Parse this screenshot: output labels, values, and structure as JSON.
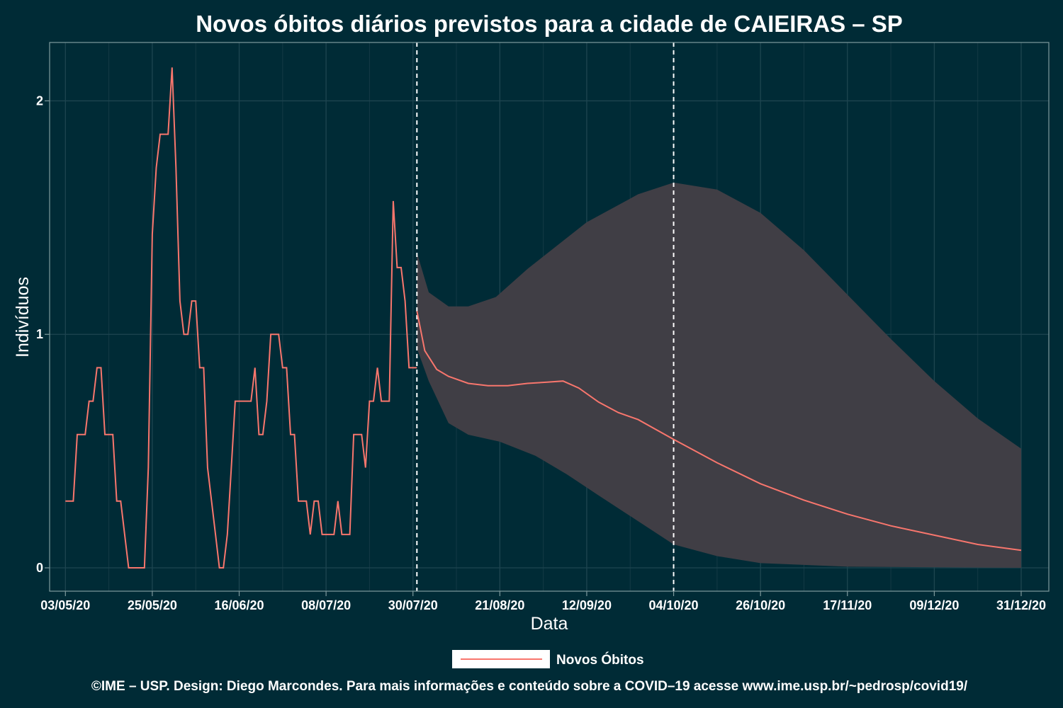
{
  "chart_data": {
    "type": "line",
    "title": "Novos óbitos diários previstos para a cidade de CAIEIRAS – SP",
    "xlabel": "Data",
    "ylabel": "Indivíduos",
    "x_start": "2020-05-03",
    "x_ticks": [
      {
        "date": "2020-05-03",
        "label": "03/05/20"
      },
      {
        "date": "2020-05-25",
        "label": "25/05/20"
      },
      {
        "date": "2020-06-16",
        "label": "16/06/20"
      },
      {
        "date": "2020-07-08",
        "label": "08/07/20"
      },
      {
        "date": "2020-07-30",
        "label": "30/07/20"
      },
      {
        "date": "2020-08-21",
        "label": "21/08/20"
      },
      {
        "date": "2020-09-12",
        "label": "12/09/20"
      },
      {
        "date": "2020-10-04",
        "label": "04/10/20"
      },
      {
        "date": "2020-10-26",
        "label": "26/10/20"
      },
      {
        "date": "2020-11-17",
        "label": "17/11/20"
      },
      {
        "date": "2020-12-09",
        "label": "09/12/20"
      },
      {
        "date": "2020-12-31",
        "label": "31/12/20"
      }
    ],
    "y_ticks": [
      {
        "value": 0,
        "label": "0"
      },
      {
        "value": 1,
        "label": "1"
      },
      {
        "value": 2,
        "label": "2"
      }
    ],
    "ylim": [
      -0.1,
      2.25
    ],
    "xlim": [
      "2020-04-29",
      "2021-01-07"
    ],
    "grid": true,
    "vlines": [
      "2020-07-31",
      "2020-10-04"
    ],
    "legend_position": "bottom",
    "series": [
      {
        "name": "Novos Óbitos",
        "color": "#f8766d",
        "observed": [
          [
            "2020-05-03",
            0.286
          ],
          [
            "2020-05-04",
            0.286
          ],
          [
            "2020-05-05",
            0.286
          ],
          [
            "2020-05-06",
            0.571
          ],
          [
            "2020-05-07",
            0.571
          ],
          [
            "2020-05-08",
            0.571
          ],
          [
            "2020-05-09",
            0.714
          ],
          [
            "2020-05-10",
            0.714
          ],
          [
            "2020-05-11",
            0.857
          ],
          [
            "2020-05-12",
            0.857
          ],
          [
            "2020-05-13",
            0.571
          ],
          [
            "2020-05-14",
            0.571
          ],
          [
            "2020-05-15",
            0.571
          ],
          [
            "2020-05-16",
            0.286
          ],
          [
            "2020-05-17",
            0.286
          ],
          [
            "2020-05-18",
            0.143
          ],
          [
            "2020-05-19",
            0.0
          ],
          [
            "2020-05-20",
            0.0
          ],
          [
            "2020-05-21",
            0.0
          ],
          [
            "2020-05-22",
            0.0
          ],
          [
            "2020-05-23",
            0.0
          ],
          [
            "2020-05-24",
            0.429
          ],
          [
            "2020-05-25",
            1.429
          ],
          [
            "2020-05-26",
            1.714
          ],
          [
            "2020-05-27",
            1.857
          ],
          [
            "2020-05-28",
            1.857
          ],
          [
            "2020-05-29",
            1.857
          ],
          [
            "2020-05-30",
            2.143
          ],
          [
            "2020-05-31",
            1.714
          ],
          [
            "2020-06-01",
            1.143
          ],
          [
            "2020-06-02",
            1.0
          ],
          [
            "2020-06-03",
            1.0
          ],
          [
            "2020-06-04",
            1.143
          ],
          [
            "2020-06-05",
            1.143
          ],
          [
            "2020-06-06",
            0.857
          ],
          [
            "2020-06-07",
            0.857
          ],
          [
            "2020-06-08",
            0.429
          ],
          [
            "2020-06-09",
            0.286
          ],
          [
            "2020-06-10",
            0.143
          ],
          [
            "2020-06-11",
            0.0
          ],
          [
            "2020-06-12",
            0.0
          ],
          [
            "2020-06-13",
            0.143
          ],
          [
            "2020-06-14",
            0.429
          ],
          [
            "2020-06-15",
            0.714
          ],
          [
            "2020-06-16",
            0.714
          ],
          [
            "2020-06-17",
            0.714
          ],
          [
            "2020-06-18",
            0.714
          ],
          [
            "2020-06-19",
            0.714
          ],
          [
            "2020-06-20",
            0.857
          ],
          [
            "2020-06-21",
            0.571
          ],
          [
            "2020-06-22",
            0.571
          ],
          [
            "2020-06-23",
            0.714
          ],
          [
            "2020-06-24",
            1.0
          ],
          [
            "2020-06-25",
            1.0
          ],
          [
            "2020-06-26",
            1.0
          ],
          [
            "2020-06-27",
            0.857
          ],
          [
            "2020-06-28",
            0.857
          ],
          [
            "2020-06-29",
            0.571
          ],
          [
            "2020-06-30",
            0.571
          ],
          [
            "2020-07-01",
            0.286
          ],
          [
            "2020-07-02",
            0.286
          ],
          [
            "2020-07-03",
            0.286
          ],
          [
            "2020-07-04",
            0.143
          ],
          [
            "2020-07-05",
            0.286
          ],
          [
            "2020-07-06",
            0.286
          ],
          [
            "2020-07-07",
            0.143
          ],
          [
            "2020-07-08",
            0.143
          ],
          [
            "2020-07-09",
            0.143
          ],
          [
            "2020-07-10",
            0.143
          ],
          [
            "2020-07-11",
            0.286
          ],
          [
            "2020-07-12",
            0.143
          ],
          [
            "2020-07-13",
            0.143
          ],
          [
            "2020-07-14",
            0.143
          ],
          [
            "2020-07-15",
            0.571
          ],
          [
            "2020-07-16",
            0.571
          ],
          [
            "2020-07-17",
            0.571
          ],
          [
            "2020-07-18",
            0.429
          ],
          [
            "2020-07-19",
            0.714
          ],
          [
            "2020-07-20",
            0.714
          ],
          [
            "2020-07-21",
            0.857
          ],
          [
            "2020-07-22",
            0.714
          ],
          [
            "2020-07-23",
            0.714
          ],
          [
            "2020-07-24",
            0.714
          ],
          [
            "2020-07-25",
            1.571
          ],
          [
            "2020-07-26",
            1.286
          ],
          [
            "2020-07-27",
            1.286
          ],
          [
            "2020-07-28",
            1.143
          ],
          [
            "2020-07-29",
            0.857
          ],
          [
            "2020-07-30",
            0.857
          ],
          [
            "2020-07-31",
            0.857
          ]
        ],
        "forecast": [
          [
            "2020-07-31",
            1.1
          ],
          [
            "2020-08-02",
            0.93
          ],
          [
            "2020-08-05",
            0.85
          ],
          [
            "2020-08-08",
            0.82
          ],
          [
            "2020-08-13",
            0.79
          ],
          [
            "2020-08-18",
            0.78
          ],
          [
            "2020-08-23",
            0.78
          ],
          [
            "2020-08-28",
            0.79
          ],
          [
            "2020-09-02",
            0.795
          ],
          [
            "2020-09-06",
            0.8
          ],
          [
            "2020-09-10",
            0.77
          ],
          [
            "2020-09-15",
            0.71
          ],
          [
            "2020-09-20",
            0.665
          ],
          [
            "2020-09-25",
            0.635
          ],
          [
            "2020-10-04",
            0.55
          ],
          [
            "2020-10-15",
            0.45
          ],
          [
            "2020-10-26",
            0.36
          ],
          [
            "2020-11-06",
            0.29
          ],
          [
            "2020-11-17",
            0.23
          ],
          [
            "2020-11-28",
            0.18
          ],
          [
            "2020-12-09",
            0.14
          ],
          [
            "2020-12-20",
            0.1
          ],
          [
            "2020-12-31",
            0.075
          ]
        ]
      }
    ],
    "confidence_band": {
      "color": "#403e45",
      "upper": [
        [
          "2020-07-31",
          1.35
        ],
        [
          "2020-08-03",
          1.18
        ],
        [
          "2020-08-08",
          1.12
        ],
        [
          "2020-08-13",
          1.12
        ],
        [
          "2020-08-20",
          1.16
        ],
        [
          "2020-08-28",
          1.28
        ],
        [
          "2020-09-12",
          1.48
        ],
        [
          "2020-09-25",
          1.6
        ],
        [
          "2020-10-04",
          1.65
        ],
        [
          "2020-10-15",
          1.62
        ],
        [
          "2020-10-26",
          1.52
        ],
        [
          "2020-11-06",
          1.36
        ],
        [
          "2020-11-17",
          1.17
        ],
        [
          "2020-11-28",
          0.98
        ],
        [
          "2020-12-09",
          0.8
        ],
        [
          "2020-12-20",
          0.64
        ],
        [
          "2020-12-31",
          0.51
        ]
      ],
      "lower": [
        [
          "2020-07-31",
          0.94
        ],
        [
          "2020-08-03",
          0.8
        ],
        [
          "2020-08-08",
          0.62
        ],
        [
          "2020-08-13",
          0.57
        ],
        [
          "2020-08-21",
          0.54
        ],
        [
          "2020-08-30",
          0.48
        ],
        [
          "2020-09-07",
          0.4
        ],
        [
          "2020-09-15",
          0.31
        ],
        [
          "2020-09-25",
          0.2
        ],
        [
          "2020-10-04",
          0.1
        ],
        [
          "2020-10-15",
          0.05
        ],
        [
          "2020-10-26",
          0.02
        ],
        [
          "2020-11-17",
          0.005
        ],
        [
          "2020-12-31",
          0.0
        ]
      ]
    }
  },
  "legend": {
    "label": "Novos Óbitos"
  },
  "caption": "©IME – USP. Design: Diego Marcondes. Para mais informações e conteúdo sobre a COVID–19 acesse www.ime.usp.br/~pedrosp/covid19/"
}
